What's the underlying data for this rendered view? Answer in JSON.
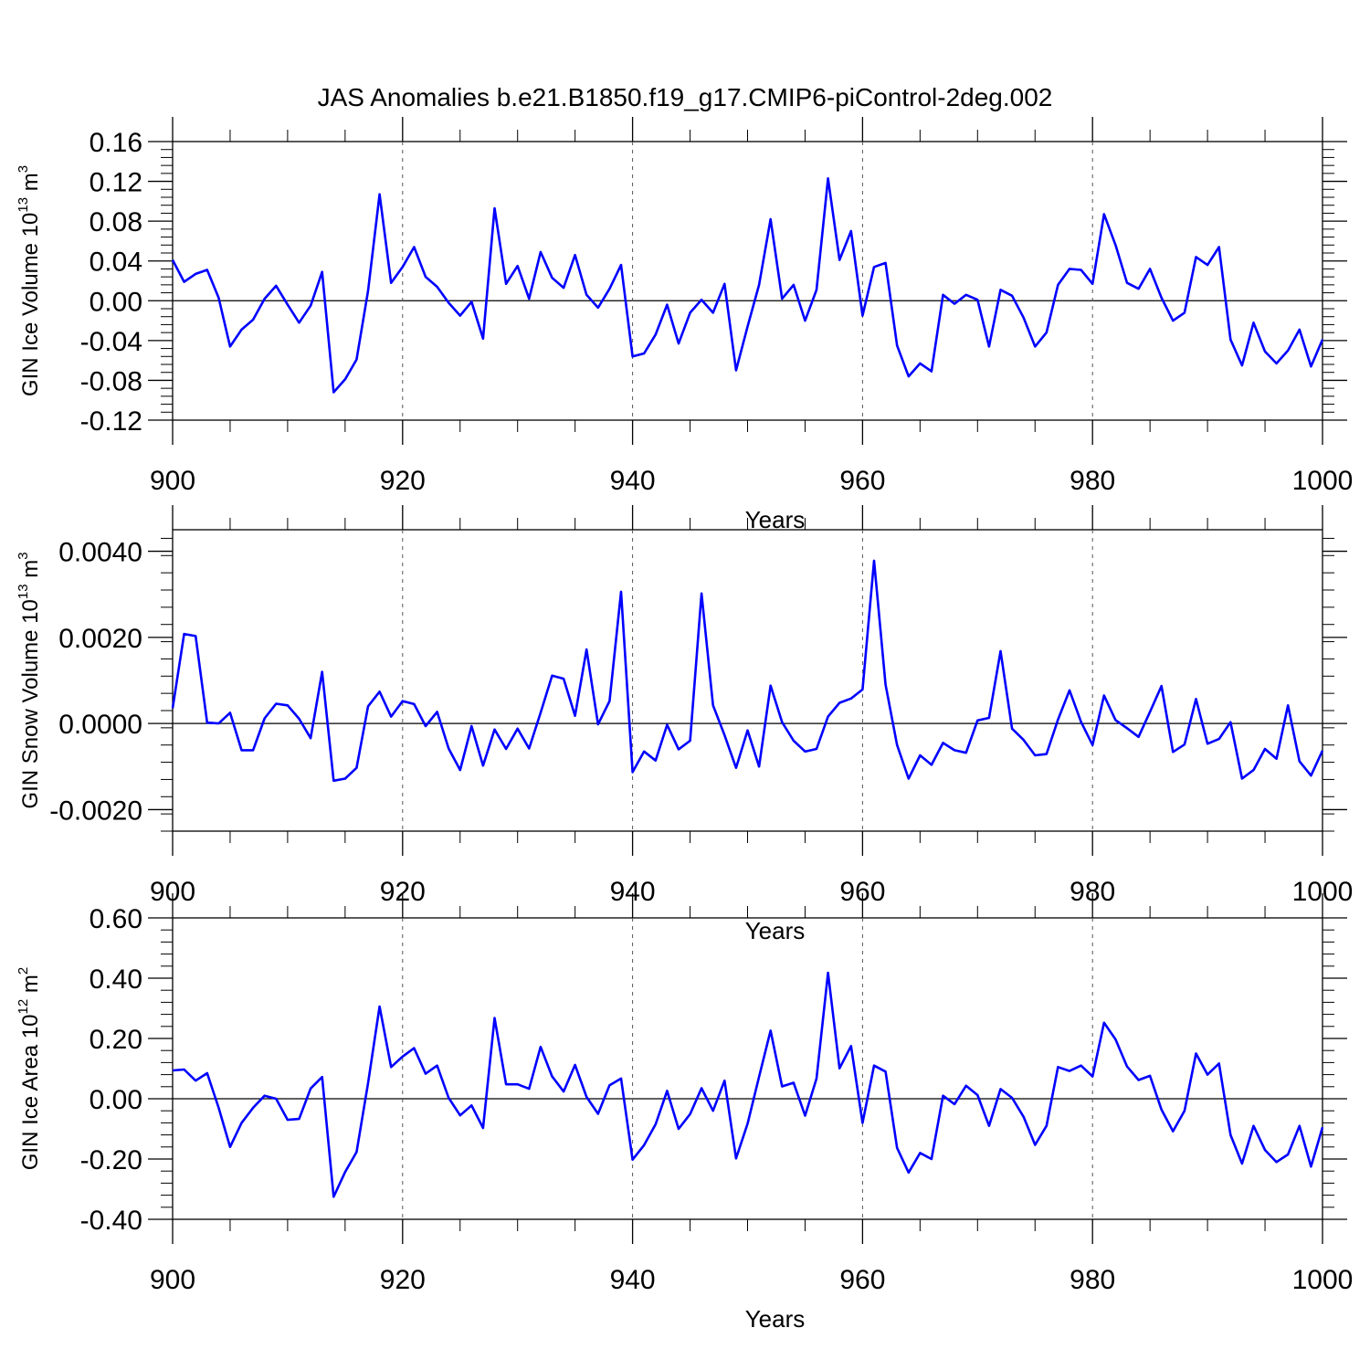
{
  "title": "JAS Anomalies b.e21.B1850.f19_g17.CMIP6-piControl-2deg.002",
  "colors": {
    "series": "#0000ff",
    "axis": "#000000",
    "grid": "#555555"
  },
  "chart_data": [
    {
      "type": "line",
      "ylabel": "GIN Ice Volume 10",
      "ylabel_exp": "13",
      "ylabel_unit": " m",
      "ylabel_unit_exp": "3",
      "xlabel": "Years",
      "xlim": [
        900,
        1000
      ],
      "ylim": [
        -0.12,
        0.16
      ],
      "yticks": [
        -0.12,
        -0.08,
        -0.04,
        0.0,
        0.04,
        0.08,
        0.12,
        0.16
      ],
      "yticklabels": [
        "-0.12",
        "-0.08",
        "-0.04",
        "0.00",
        "0.04",
        "0.08",
        "0.12",
        "0.16"
      ],
      "xticks": [
        900,
        920,
        940,
        960,
        980,
        1000
      ],
      "xticklabels": [
        "900",
        "920",
        "940",
        "960",
        "980",
        "1000"
      ],
      "x_start": 900,
      "values": [
        0.041,
        0.019,
        0.027,
        0.031,
        0.003,
        -0.046,
        -0.029,
        -0.019,
        0.002,
        0.015,
        -0.004,
        -0.022,
        -0.005,
        0.029,
        -0.092,
        -0.079,
        -0.059,
        0.01,
        0.107,
        0.018,
        0.034,
        0.054,
        0.024,
        0.014,
        -0.002,
        -0.015,
        -0.001,
        -0.038,
        0.093,
        0.017,
        0.035,
        0.002,
        0.049,
        0.023,
        0.013,
        0.046,
        0.006,
        -0.007,
        0.012,
        0.036,
        -0.056,
        -0.053,
        -0.034,
        -0.004,
        -0.043,
        -0.012,
        0.001,
        -0.012,
        0.017,
        -0.07,
        -0.026,
        0.016,
        0.082,
        0.002,
        0.016,
        -0.02,
        0.011,
        0.123,
        0.041,
        0.07,
        -0.015,
        0.034,
        0.038,
        -0.045,
        -0.076,
        -0.063,
        -0.071,
        0.006,
        -0.003,
        0.006,
        0.001,
        -0.046,
        0.011,
        0.005,
        -0.017,
        -0.046,
        -0.032,
        0.016,
        0.032,
        0.031,
        0.017,
        0.087,
        0.056,
        0.018,
        0.012,
        0.032,
        0.003,
        -0.02,
        -0.012,
        0.044,
        0.036,
        0.054,
        -0.039,
        -0.065,
        -0.022,
        -0.051,
        -0.063,
        -0.05,
        -0.029,
        -0.066,
        -0.039
      ]
    },
    {
      "type": "line",
      "ylabel": "GIN Snow Volume 10",
      "ylabel_exp": "13",
      "ylabel_unit": " m",
      "ylabel_unit_exp": "3",
      "xlabel": "Years",
      "xlim": [
        900,
        1000
      ],
      "ylim": [
        -0.0025,
        0.0045
      ],
      "yticks": [
        -0.002,
        0.0,
        0.002,
        0.004
      ],
      "yticklabels": [
        "-0.0020",
        "0.0000",
        "0.0020",
        "0.0040"
      ],
      "xticks": [
        900,
        920,
        940,
        960,
        980,
        1000
      ],
      "xticklabels": [
        "900",
        "920",
        "940",
        "960",
        "980",
        "1000"
      ],
      "x_start": 900,
      "values": [
        0.00035,
        0.00208,
        0.00203,
        2e-05,
        0.0,
        0.00025,
        -0.00062,
        -0.00062,
        0.00012,
        0.00046,
        0.00042,
        0.00011,
        -0.00034,
        0.0012,
        -0.00133,
        -0.00128,
        -0.00103,
        0.0004,
        0.00074,
        0.00016,
        0.00052,
        0.00045,
        -6e-05,
        0.00027,
        -0.00058,
        -0.00108,
        -6e-05,
        -0.00098,
        -0.00014,
        -0.00059,
        -0.00012,
        -0.00058,
        0.00025,
        0.00111,
        0.00104,
        0.00018,
        0.00172,
        -2e-05,
        0.00052,
        0.00306,
        -0.00113,
        -0.00065,
        -0.00086,
        -3e-05,
        -0.0006,
        -0.0004,
        0.00302,
        0.00042,
        -0.00027,
        -0.00103,
        -0.00016,
        -0.001,
        0.00088,
        3e-05,
        -0.0004,
        -0.00065,
        -0.00059,
        0.00016,
        0.00048,
        0.00058,
        0.00079,
        0.00378,
        0.0009,
        -0.0005,
        -0.00128,
        -0.00074,
        -0.00096,
        -0.00045,
        -0.00062,
        -0.00068,
        7e-05,
        0.00013,
        0.00168,
        -0.00012,
        -0.00038,
        -0.00074,
        -0.00071,
        9e-05,
        0.00077,
        4e-05,
        -0.0005,
        0.00065,
        8e-05,
        -0.00011,
        -0.00031,
        0.00027,
        0.00087,
        -0.00066,
        -0.00049,
        0.00057,
        -0.00047,
        -0.00036,
        3e-05,
        -0.00128,
        -0.00108,
        -0.00059,
        -0.00082,
        0.00042,
        -0.00088,
        -0.00121,
        -0.00063
      ]
    },
    {
      "type": "line",
      "ylabel": "GIN Ice Area 10",
      "ylabel_exp": "12",
      "ylabel_unit": " m",
      "ylabel_unit_exp": "2",
      "xlabel": "Years",
      "xlim": [
        900,
        1000
      ],
      "ylim": [
        -0.4,
        0.6
      ],
      "yticks": [
        -0.4,
        -0.2,
        0.0,
        0.2,
        0.4,
        0.6
      ],
      "yticklabels": [
        "-0.40",
        "-0.20",
        "0.00",
        "0.20",
        "0.40",
        "0.60"
      ],
      "xticks": [
        900,
        920,
        940,
        960,
        980,
        1000
      ],
      "xticklabels": [
        "900",
        "920",
        "940",
        "960",
        "980",
        "1000"
      ],
      "x_start": 900,
      "values": [
        0.094,
        0.097,
        0.06,
        0.085,
        -0.03,
        -0.16,
        -0.08,
        -0.03,
        0.01,
        0.0,
        -0.07,
        -0.067,
        0.034,
        0.072,
        -0.325,
        -0.243,
        -0.177,
        0.052,
        0.306,
        0.105,
        0.14,
        0.168,
        0.083,
        0.11,
        0.003,
        -0.055,
        -0.022,
        -0.097,
        0.268,
        0.048,
        0.048,
        0.033,
        0.172,
        0.074,
        0.024,
        0.112,
        0.006,
        -0.05,
        0.045,
        0.067,
        -0.202,
        -0.154,
        -0.085,
        0.026,
        -0.1,
        -0.051,
        0.035,
        -0.04,
        0.06,
        -0.198,
        -0.083,
        0.073,
        0.226,
        0.041,
        0.053,
        -0.056,
        0.067,
        0.418,
        0.101,
        0.175,
        -0.08,
        0.11,
        0.09,
        -0.163,
        -0.245,
        -0.18,
        -0.2,
        0.01,
        -0.018,
        0.043,
        0.012,
        -0.09,
        0.032,
        0.003,
        -0.06,
        -0.153,
        -0.09,
        0.105,
        0.092,
        0.11,
        0.074,
        0.252,
        0.197,
        0.107,
        0.062,
        0.076,
        -0.036,
        -0.108,
        -0.04,
        0.15,
        0.08,
        0.117,
        -0.12,
        -0.215,
        -0.09,
        -0.17,
        -0.21,
        -0.185,
        -0.09,
        -0.225,
        -0.095
      ]
    }
  ]
}
